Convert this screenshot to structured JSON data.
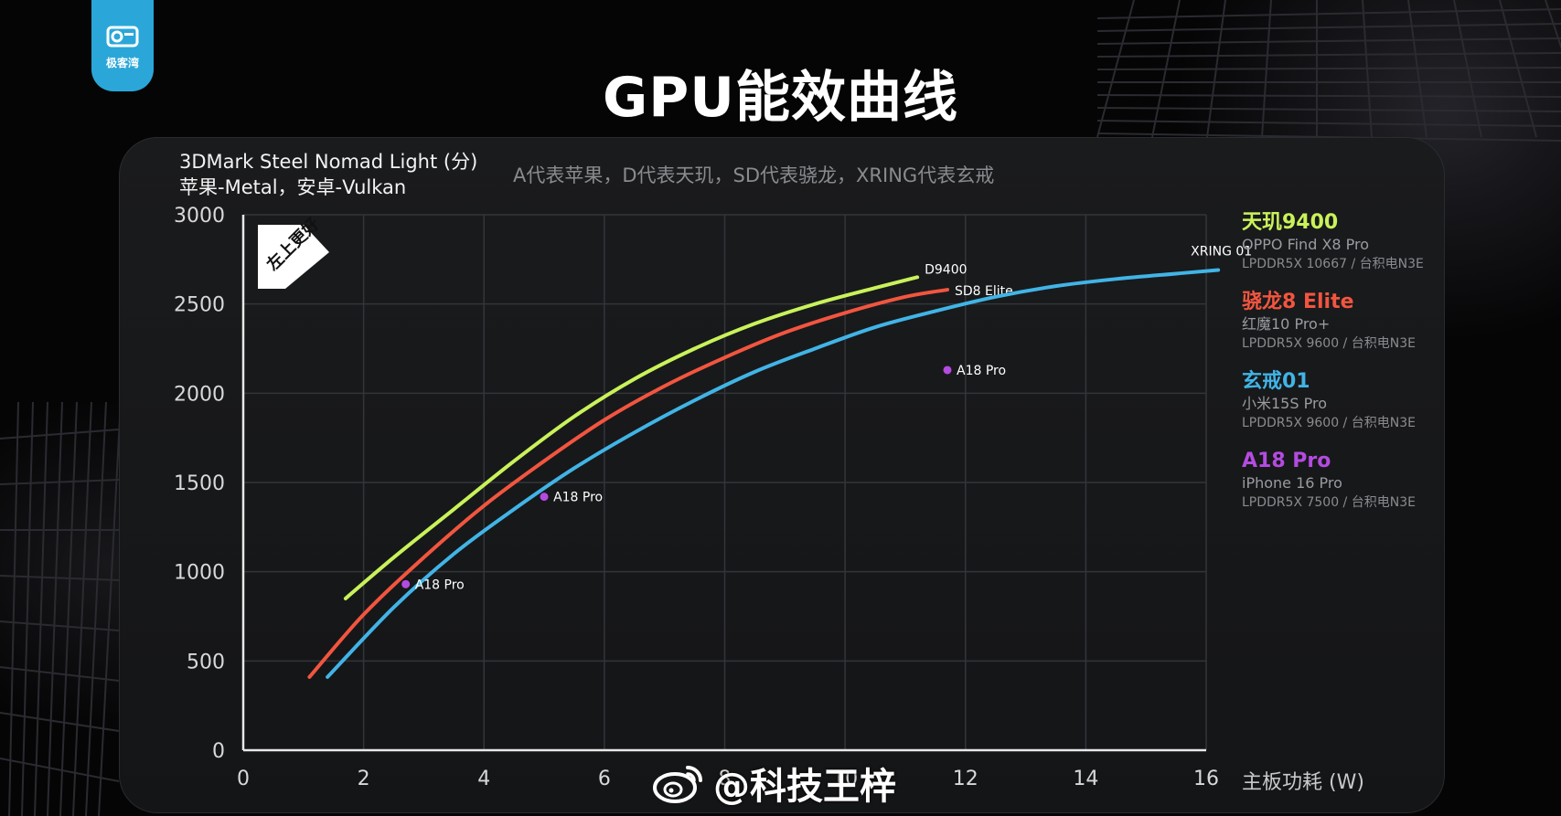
{
  "brand": {
    "logo_text": "极客湾",
    "accent": "#2aa7d8"
  },
  "title": "GPU能效曲线",
  "header": {
    "ylabel_line1": "3DMark Steel Nomad Light (分)",
    "ylabel_line2": "苹果-Metal，安卓-Vulkan",
    "note": "A代表苹果，D代表天玑，SD代表骁龙，XRING代表玄戒",
    "badge": "左上更好"
  },
  "legend": [
    {
      "name": "天玑9400",
      "device": "OPPO Find X8 Pro",
      "spec": "LPDDR5X 10667 / 台积电N3E",
      "color": "#c9f25a"
    },
    {
      "name": "骁龙8 Elite",
      "device": "红魔10 Pro+",
      "spec": "LPDDR5X 9600 / 台积电N3E",
      "color": "#f2553f"
    },
    {
      "name": "玄戒01",
      "device": "小米15S Pro",
      "spec": "LPDDR5X 9600 / 台积电N3E",
      "color": "#41b4e6"
    },
    {
      "name": "A18 Pro",
      "device": "iPhone 16 Pro",
      "spec": "LPDDR5X 7500 / 台积电N3E",
      "color": "#b44be0"
    }
  ],
  "watermark": "@科技王梓",
  "chart_data": {
    "type": "line",
    "title": "GPU能效曲线",
    "xlabel": "主板功耗 (W)",
    "ylabel": "3DMark Steel Nomad Light (分)",
    "xlim": [
      0,
      16
    ],
    "ylim": [
      0,
      3000
    ],
    "xticks": [
      0,
      2,
      4,
      6,
      8,
      10,
      12,
      14,
      16
    ],
    "yticks": [
      0,
      500,
      1000,
      1500,
      2000,
      2500,
      3000
    ],
    "grid": true,
    "legend_position": "right",
    "series": [
      {
        "name": "天玑9400",
        "end_label": "D9400",
        "color": "#c9f25a",
        "points": [
          [
            1.7,
            850
          ],
          [
            2.5,
            1080
          ],
          [
            3.5,
            1350
          ],
          [
            4.5,
            1620
          ],
          [
            5.5,
            1870
          ],
          [
            6.5,
            2080
          ],
          [
            7.5,
            2250
          ],
          [
            8.5,
            2390
          ],
          [
            9.5,
            2500
          ],
          [
            10.5,
            2590
          ],
          [
            11.2,
            2650
          ]
        ]
      },
      {
        "name": "骁龙8 Elite",
        "end_label": "SD8 Elite",
        "color": "#f2553f",
        "points": [
          [
            1.1,
            410
          ],
          [
            2.0,
            760
          ],
          [
            3.0,
            1080
          ],
          [
            4.0,
            1370
          ],
          [
            5.0,
            1620
          ],
          [
            6.0,
            1850
          ],
          [
            7.0,
            2040
          ],
          [
            8.0,
            2200
          ],
          [
            9.0,
            2340
          ],
          [
            10.0,
            2450
          ],
          [
            11.0,
            2540
          ],
          [
            11.7,
            2580
          ]
        ]
      },
      {
        "name": "玄戒01",
        "end_label": "XRING 01",
        "color": "#41b4e6",
        "points": [
          [
            1.4,
            410
          ],
          [
            2.5,
            800
          ],
          [
            3.5,
            1100
          ],
          [
            4.5,
            1350
          ],
          [
            5.5,
            1580
          ],
          [
            6.5,
            1780
          ],
          [
            7.5,
            1960
          ],
          [
            8.5,
            2120
          ],
          [
            9.5,
            2250
          ],
          [
            10.5,
            2370
          ],
          [
            11.5,
            2460
          ],
          [
            12.5,
            2540
          ],
          [
            13.5,
            2600
          ],
          [
            14.5,
            2640
          ],
          [
            15.5,
            2670
          ],
          [
            16.2,
            2690
          ]
        ]
      }
    ],
    "points": [
      {
        "name": "A18 Pro",
        "label": "A18 Pro",
        "color": "#b44be0",
        "x": 2.7,
        "y": 930
      },
      {
        "name": "A18 Pro",
        "label": "A18 Pro",
        "color": "#b44be0",
        "x": 5.0,
        "y": 1420
      },
      {
        "name": "A18 Pro",
        "label": "A18 Pro",
        "color": "#b44be0",
        "x": 11.7,
        "y": 2130
      }
    ]
  }
}
